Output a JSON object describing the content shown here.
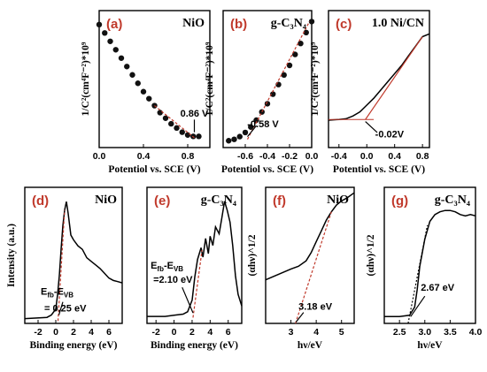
{
  "chart_data": [
    {
      "type": "scatter",
      "label": "(a)",
      "title": "NiO",
      "xlabel": "Potentiol vs. SCE (V)",
      "ylabel": "1/C²(cm⁴F⁻²)*10⁹",
      "xlim": [
        0.0,
        1.0
      ],
      "xticks": [
        "0.0",
        "0.4",
        "0.8"
      ],
      "annotation": "0.86 V",
      "series": [
        {
          "x": [
            0.0,
            0.05,
            0.1,
            0.15,
            0.2,
            0.25,
            0.3,
            0.35,
            0.4,
            0.45,
            0.5,
            0.55,
            0.6,
            0.65,
            0.7,
            0.75,
            0.8,
            0.85,
            0.9
          ],
          "y": [
            9.6,
            9.0,
            8.4,
            7.8,
            7.2,
            6.6,
            6.0,
            5.4,
            4.8,
            4.3,
            3.8,
            3.3,
            2.9,
            2.5,
            2.2,
            1.9,
            1.7,
            1.6,
            1.6
          ]
        }
      ]
    },
    {
      "type": "scatter",
      "label": "(b)",
      "title": "g-C₃N₄",
      "xlabel": "Potentiol vs. SCE (V)",
      "ylabel": "1/C²(cm⁴F⁻²)*10⁹",
      "xlim": [
        -0.8,
        0.0
      ],
      "xticks": [
        "-0.6",
        "-0.4",
        "-0.2",
        "0.0"
      ],
      "annotation": "-0.58 V",
      "series": [
        {
          "x": [
            -0.75,
            -0.7,
            -0.65,
            -0.6,
            -0.55,
            -0.5,
            -0.45,
            -0.4,
            -0.35,
            -0.3,
            -0.25,
            -0.2,
            -0.15,
            -0.1,
            -0.05,
            0.0
          ],
          "y": [
            0.5,
            0.6,
            0.8,
            1.1,
            1.5,
            2.0,
            2.6,
            3.2,
            3.9,
            4.6,
            5.3,
            6.0,
            6.8,
            7.6,
            8.4,
            9.2
          ]
        }
      ]
    },
    {
      "type": "line",
      "label": "(c)",
      "title": "1.0 Ni/CN",
      "xlabel": "Potentiol vs. SCE (V)",
      "ylabel": "1/C²(cm⁴F⁻²)*10⁹",
      "xlim": [
        -0.55,
        0.9
      ],
      "xticks": [
        "-0.4",
        "0.0",
        "0.4",
        "0.8"
      ],
      "annotation": "-0.02V",
      "series": [
        {
          "x": [
            -0.55,
            -0.4,
            -0.3,
            -0.2,
            -0.1,
            0.0,
            0.1,
            0.2,
            0.3,
            0.4,
            0.5,
            0.6,
            0.7,
            0.8,
            0.9
          ],
          "y": [
            2.0,
            2.05,
            2.1,
            2.3,
            2.6,
            3.1,
            3.6,
            4.2,
            4.8,
            5.4,
            6.0,
            6.7,
            7.4,
            8.1,
            8.3
          ]
        }
      ]
    },
    {
      "type": "line",
      "label": "(d)",
      "title": "NiO",
      "xlabel": "Binding energy (eV)",
      "ylabel": "Intensity (a.u.)",
      "xlim": [
        -3.5,
        7.5
      ],
      "xticks": [
        "-2",
        "0",
        "2",
        "4",
        "6"
      ],
      "annotation": [
        "E_fb-E_VB",
        "= 0.25 eV"
      ],
      "series": [
        {
          "x": [
            -3.5,
            -1.0,
            -0.5,
            0.0,
            0.2,
            0.4,
            0.6,
            0.8,
            1.0,
            1.2,
            1.4,
            1.7,
            2.0,
            2.5,
            3.0,
            3.5,
            4.0,
            4.5,
            5.0,
            5.5,
            6.0,
            6.5,
            7.0,
            7.5
          ],
          "y": [
            0.02,
            0.03,
            0.05,
            0.1,
            0.22,
            0.38,
            0.6,
            0.8,
            0.93,
            1.0,
            0.9,
            0.72,
            0.68,
            0.63,
            0.6,
            0.53,
            0.5,
            0.47,
            0.44,
            0.4,
            0.36,
            0.34,
            0.33,
            0.32
          ]
        }
      ]
    },
    {
      "type": "line",
      "label": "(e)",
      "title": "g-C₃N₄",
      "xlabel": "Binding energy (eV)",
      "ylabel": "",
      "xlim": [
        -3,
        7.5
      ],
      "xticks": [
        "-2",
        "0",
        "2",
        "4",
        "6"
      ],
      "annotation": [
        "E_fb-E_VB",
        "=2.10 eV"
      ],
      "series": [
        {
          "x": [
            -3,
            -1,
            0.0,
            1.0,
            1.5,
            2.0,
            2.3,
            2.6,
            3.0,
            3.2,
            3.5,
            3.8,
            4.0,
            4.3,
            4.6,
            5.0,
            5.3,
            5.6,
            5.9,
            6.2,
            6.5,
            6.8,
            7.1,
            7.5
          ],
          "y": [
            0.01,
            0.01,
            0.02,
            0.03,
            0.05,
            0.15,
            0.35,
            0.5,
            0.6,
            0.52,
            0.68,
            0.55,
            0.7,
            0.62,
            0.78,
            0.72,
            0.86,
            1.0,
            0.92,
            0.82,
            0.62,
            0.36,
            0.2,
            0.1
          ]
        }
      ]
    },
    {
      "type": "line",
      "label": "(f)",
      "title": "NiO",
      "xlabel": "hν/eV",
      "ylabel": "(αhν)^1/2",
      "xlim": [
        2.0,
        5.5
      ],
      "xticks": [
        "3",
        "4",
        "5"
      ],
      "annotation": "3.18 eV",
      "series": [
        {
          "x": [
            2.0,
            2.5,
            3.0,
            3.3,
            3.6,
            3.8,
            4.0,
            4.2,
            4.4,
            4.6,
            4.8,
            5.0,
            5.2,
            5.5
          ],
          "y": [
            0.32,
            0.36,
            0.4,
            0.42,
            0.46,
            0.52,
            0.6,
            0.68,
            0.76,
            0.82,
            0.87,
            0.9,
            0.92,
            0.96
          ]
        }
      ]
    },
    {
      "type": "line",
      "label": "(g)",
      "title": "g-C₃N₄",
      "xlabel": "hν/eV",
      "ylabel": "(αhν)^1/2",
      "xlim": [
        2.2,
        4.0
      ],
      "xticks": [
        "2.5",
        "3.0",
        "3.5",
        "4.0"
      ],
      "annotation": "2.67 eV",
      "series": [
        {
          "x": [
            2.2,
            2.5,
            2.7,
            2.8,
            2.85,
            2.9,
            3.0,
            3.1,
            3.2,
            3.3,
            3.4,
            3.5,
            3.6,
            3.7,
            3.8,
            3.9,
            4.0
          ],
          "y": [
            0.05,
            0.05,
            0.06,
            0.12,
            0.25,
            0.42,
            0.62,
            0.75,
            0.8,
            0.82,
            0.83,
            0.83,
            0.82,
            0.8,
            0.79,
            0.8,
            0.79
          ]
        }
      ]
    }
  ]
}
